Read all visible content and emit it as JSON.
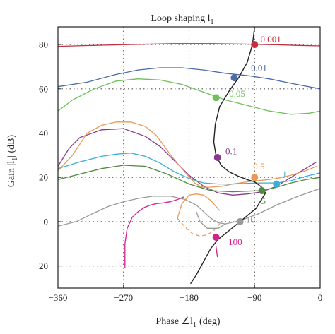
{
  "chart_data": {
    "type": "line",
    "title": "Loop shaping l",
    "title_sub": "1",
    "xlabel": "Phase ∠l",
    "xlabel_sub": "1",
    "xlabel_unit": "(deg)",
    "ylabel": "Gain |l",
    "ylabel_sub": "1",
    "ylabel_unit": "| (dB)",
    "xlim": [
      -360,
      0
    ],
    "ylim": [
      -30,
      88
    ],
    "xticks": [
      -360,
      -270,
      -180,
      -90,
      0
    ],
    "yticks": [
      -20,
      0,
      20,
      40,
      60,
      80
    ],
    "grid": true,
    "series": [
      {
        "name": "0.001",
        "color": "#c0303f",
        "label_pos": [
          -82,
          81
        ],
        "x": [
          -360,
          -300,
          -250,
          -200,
          -150,
          -100,
          -60,
          -30,
          0
        ],
        "y": [
          79.2,
          79.7,
          80.1,
          80.4,
          80.4,
          80.2,
          79.9,
          79.6,
          79.4
        ],
        "point": [
          -90,
          80
        ]
      },
      {
        "name": "0.01",
        "color": "#4a6aa8",
        "label_pos": [
          -95,
          68
        ],
        "x": [
          -360,
          -320,
          -280,
          -250,
          -220,
          -190,
          -160,
          -130,
          -100,
          -70,
          -40,
          0
        ],
        "y": [
          61,
          63,
          66.5,
          68.5,
          69.5,
          69.5,
          68.5,
          67,
          66,
          64.5,
          62.5,
          60
        ],
        "point": [
          -118,
          65
        ]
      },
      {
        "name": "0.05",
        "color": "#6fc05a",
        "label_pos": [
          -125,
          56.5
        ],
        "x": [
          -360,
          -340,
          -310,
          -280,
          -250,
          -220,
          -190,
          -160,
          -130,
          -100,
          -70,
          -40,
          -15,
          0
        ],
        "y": [
          50,
          55,
          60,
          63.5,
          64.5,
          64,
          62,
          58.5,
          55,
          52.5,
          50,
          48.5,
          49,
          50
        ],
        "point": [
          -143,
          56
        ]
      },
      {
        "name": "0.1",
        "color": "#8a3a8c",
        "label_pos": [
          -130,
          30.5
        ],
        "x": [
          -360,
          -345,
          -330,
          -300,
          -270,
          -240,
          -220,
          -200,
          -180,
          -160,
          -140,
          -120,
          -100,
          -80,
          -60,
          -40,
          -20,
          -5
        ],
        "y": [
          25,
          33,
          38,
          41.5,
          42,
          38.5,
          34,
          27.5,
          21,
          16,
          13,
          12,
          12.5,
          13.5,
          16,
          20,
          24,
          27
        ],
        "point": [
          -141,
          29
        ]
      },
      {
        "name": "0.5",
        "color": "#e89a55",
        "label_pos": [
          -92,
          23.5
        ],
        "x": [
          -360,
          -340,
          -320,
          -300,
          -280,
          -260,
          -240,
          -225,
          -215,
          -205,
          -195,
          -182,
          -172,
          -165,
          -160,
          -150,
          -135,
          -120,
          -100,
          -80,
          -60,
          -40,
          -20,
          -5
        ],
        "y": [
          23,
          30,
          40,
          43.5,
          45,
          45,
          43,
          39,
          34.5,
          30,
          26,
          21,
          17.5,
          16,
          15.5,
          15.6,
          16,
          17,
          18,
          18.7,
          19.5,
          21,
          23,
          25
        ],
        "point": [
          -90,
          20
        ]
      },
      {
        "name": "1",
        "color": "#3aaed8",
        "label_pos": [
          -52,
          20
        ],
        "x": [
          -360,
          -330,
          -300,
          -280,
          -260,
          -240,
          -220,
          -200,
          -180,
          -160,
          -140,
          -120,
          -100,
          -80,
          -60,
          -40,
          -20,
          0
        ],
        "y": [
          24,
          27,
          29.5,
          30.5,
          31,
          29.5,
          26.5,
          22.5,
          19.5,
          17.5,
          17,
          17,
          17.3,
          17.5,
          17.5,
          18.5,
          20.5,
          22
        ],
        "point": [
          -60,
          17
        ]
      },
      {
        "name": "5",
        "color": "#4f8a3e",
        "label_pos": [
          -81,
          8
        ],
        "x": [
          -360,
          -330,
          -300,
          -270,
          -240,
          -210,
          -180,
          -150,
          -120,
          -100,
          -80,
          -60,
          -40,
          -20,
          0
        ],
        "y": [
          19,
          21.5,
          24,
          25.5,
          25,
          21.5,
          17,
          14,
          13.5,
          13.8,
          14,
          15.5,
          17.5,
          19,
          20
        ],
        "point": [
          -80,
          14
        ]
      },
      {
        "name": "10",
        "color": "#999999",
        "label_pos": [
          -102,
          -0.5
        ],
        "x": [
          -360,
          -335,
          -310,
          -290,
          -270,
          -250,
          -230,
          -205,
          -185,
          -170,
          -160,
          -150,
          -140,
          -130,
          -110,
          -85,
          -60,
          -30,
          0
        ],
        "y": [
          -2,
          0,
          4,
          7,
          9,
          10.5,
          11.5,
          11.5,
          10,
          7.5,
          4.5,
          1.5,
          -0.5,
          -1,
          0.5,
          3.5,
          7.5,
          11.5,
          15
        ],
        "point": [
          -110,
          0
        ]
      },
      {
        "name": "100",
        "color": "#d4208a",
        "label_pos": [
          -126,
          -10.5
        ],
        "x": [
          -268,
          -268,
          -265,
          -258,
          -250,
          -241,
          -233,
          -224,
          -215,
          -206,
          -196,
          -187
        ],
        "y": [
          -21,
          -10,
          -3,
          2,
          4.5,
          6.5,
          7.5,
          8.2,
          8.5,
          9,
          10,
          11.2
        ],
        "point": [
          -143,
          -7
        ]
      }
    ],
    "extra_segments": [
      {
        "name": "100",
        "color": "#d4208a",
        "x": [
          -143,
          -141
        ],
        "y": [
          -11,
          -16
        ]
      },
      {
        "name": "0.5",
        "color": "#e89a55",
        "dashed": true,
        "x": [
          -196,
          -185,
          -175,
          -165,
          -155,
          -146,
          -138
        ],
        "y": [
          1.5,
          -2.5,
          -5.5,
          -6.5,
          -6,
          -4,
          -1
        ]
      },
      {
        "name": "0.5",
        "color": "#e89a55",
        "x": [
          -196,
          -190,
          -180,
          -170,
          -160,
          -150,
          -138
        ],
        "y": [
          1.5,
          8,
          12,
          12.5,
          12,
          9.5,
          5
        ]
      },
      {
        "name": "10",
        "color": "#999999",
        "x": [
          -130,
          -140,
          -155,
          -165,
          -170
        ],
        "y": [
          -1,
          -3,
          -3,
          0,
          4.5
        ]
      }
    ],
    "locus": {
      "color": "#222222",
      "x": [
        -90,
        -93,
        -100,
        -112,
        -125,
        -138,
        -144,
        -146,
        -143,
        -136,
        -125,
        -112,
        -100,
        -90,
        -80,
        -75,
        -88,
        -110,
        -125,
        -140,
        -150,
        -160,
        -170,
        -178
      ],
      "y": [
        88,
        80,
        72,
        65,
        59,
        52,
        44,
        36,
        30,
        25.5,
        22.5,
        20.5,
        19,
        18,
        15.5,
        13,
        6,
        0,
        -4,
        -8,
        -12,
        -18,
        -24,
        -28
      ]
    }
  }
}
